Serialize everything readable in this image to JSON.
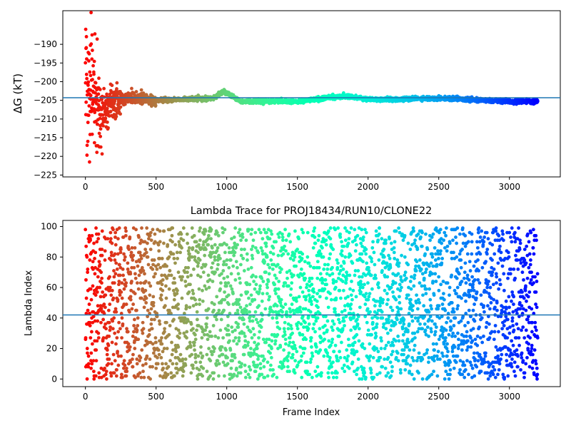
{
  "chart_data": [
    {
      "type": "scatter",
      "title": "",
      "xlabel": "",
      "ylabel": "ΔG (kT)",
      "xlim": [
        -160,
        3360
      ],
      "ylim": [
        -225.5,
        -181
      ],
      "xticks": [
        0,
        500,
        1000,
        1500,
        2000,
        2500,
        3000
      ],
      "yticks": [
        -225,
        -220,
        -215,
        -210,
        -205,
        -200,
        -195,
        -190
      ],
      "colormap": "rainbow",
      "point_count": 3200,
      "x_range": [
        0,
        3200
      ],
      "reference_line": {
        "y": -204.3,
        "color": "#1f77b4"
      },
      "trend_points": [
        {
          "x": 0,
          "y": -200
        },
        {
          "x": 100,
          "y": -208
        },
        {
          "x": 200,
          "y": -206
        },
        {
          "x": 300,
          "y": -204
        },
        {
          "x": 500,
          "y": -205
        },
        {
          "x": 700,
          "y": -204.7
        },
        {
          "x": 900,
          "y": -204.5
        },
        {
          "x": 980,
          "y": -202.5
        },
        {
          "x": 1100,
          "y": -205.3
        },
        {
          "x": 1300,
          "y": -205.2
        },
        {
          "x": 1500,
          "y": -205.4
        },
        {
          "x": 1700,
          "y": -204.3
        },
        {
          "x": 1850,
          "y": -203.9
        },
        {
          "x": 2000,
          "y": -204.7
        },
        {
          "x": 2200,
          "y": -204.8
        },
        {
          "x": 2400,
          "y": -204.5
        },
        {
          "x": 2600,
          "y": -204.5
        },
        {
          "x": 2800,
          "y": -205.0
        },
        {
          "x": 3000,
          "y": -205.3
        },
        {
          "x": 3200,
          "y": -205.3
        }
      ]
    },
    {
      "type": "scatter",
      "title": "Lambda Trace for PROJ18434/RUN10/CLONE22",
      "xlabel": "Frame Index",
      "ylabel": "Lambda Index",
      "xlim": [
        -160,
        3360
      ],
      "ylim": [
        -5,
        104
      ],
      "xticks": [
        0,
        500,
        1000,
        1500,
        2000,
        2500,
        3000
      ],
      "yticks": [
        0,
        20,
        40,
        60,
        80,
        100
      ],
      "colormap": "rainbow",
      "point_count": 3200,
      "x_range": [
        0,
        3200
      ],
      "y_range": [
        0,
        99
      ],
      "reference_line": {
        "y": 42,
        "color": "#1f77b4"
      }
    }
  ]
}
